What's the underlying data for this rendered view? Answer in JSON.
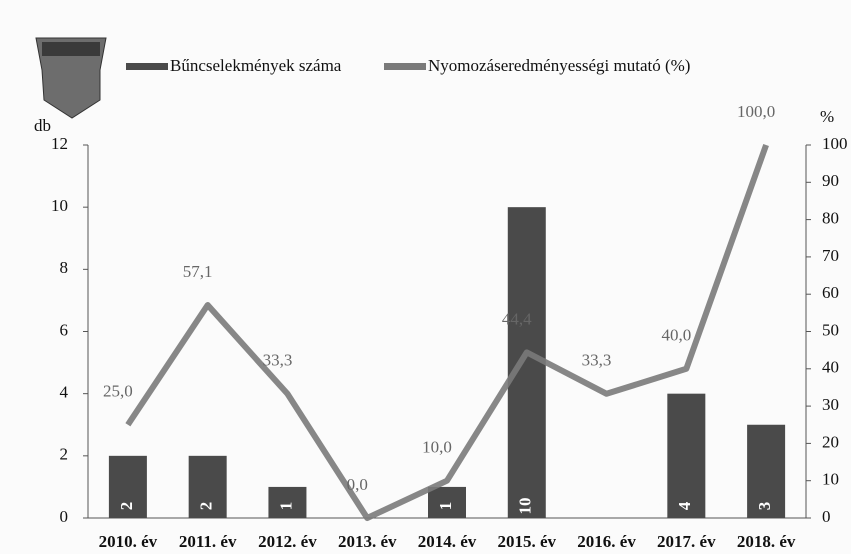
{
  "chart_data": {
    "type": "bar-line",
    "legend": [
      "Bűncselekmények száma",
      "Nyomozáseredményességi mutató (%)"
    ],
    "y_label": "db",
    "y2_label": "%",
    "categories": [
      "2010. év",
      "2011. év",
      "2012. év",
      "2013. év",
      "2014. év",
      "2015. év",
      "2016. év",
      "2017. év",
      "2018. év"
    ],
    "series": [
      {
        "name": "Bűncselekmények száma",
        "type": "bar",
        "color": "#4a4a4a",
        "values": [
          2,
          2,
          1,
          null,
          1,
          10,
          null,
          4,
          3
        ]
      },
      {
        "name": "Nyomozáseredményességi mutató (%)",
        "type": "line",
        "axis": "y2",
        "color": "#7a7a7a",
        "values": [
          25.0,
          57.1,
          33.3,
          0.0,
          10.0,
          44.4,
          33.3,
          40.0,
          100.0
        ],
        "value_labels": [
          "25,0",
          "57,1",
          "33,3",
          "0,0",
          "10,0",
          "44,4",
          "33,3",
          "40,0",
          "100,0"
        ]
      }
    ],
    "ylim": [
      0,
      12
    ],
    "yticks": [
      0,
      2,
      4,
      6,
      8,
      10,
      12
    ],
    "y2lim": [
      0,
      100
    ],
    "y2ticks": [
      0,
      10,
      20,
      30,
      40,
      50,
      60,
      70,
      80,
      90,
      100
    ]
  }
}
